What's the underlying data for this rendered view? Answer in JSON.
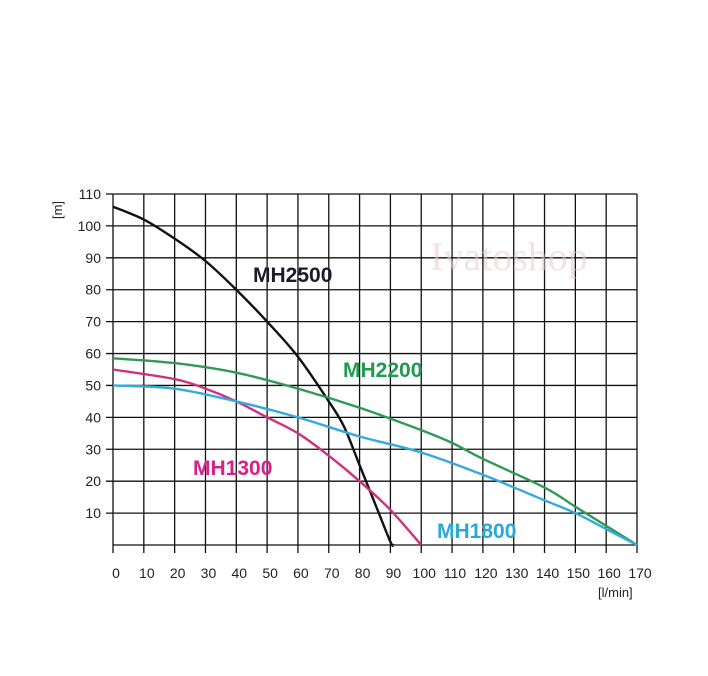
{
  "chart_data": {
    "type": "line",
    "title": "",
    "xlabel": "[l/min]",
    "ylabel": "[m]",
    "xlim": [
      0,
      170
    ],
    "ylim": [
      0,
      110
    ],
    "x_ticks": [
      0,
      10,
      20,
      30,
      40,
      50,
      60,
      70,
      80,
      90,
      100,
      110,
      120,
      130,
      140,
      150,
      160,
      170
    ],
    "y_ticks": [
      10,
      20,
      30,
      40,
      50,
      60,
      70,
      80,
      90,
      100,
      110
    ],
    "grid": true,
    "legend": "inline labels",
    "watermark": "Ivatoshop",
    "series": [
      {
        "name": "MH2500",
        "color": "#111111",
        "label_color": "#1b1b2b",
        "x": [
          0,
          10,
          20,
          30,
          40,
          50,
          60,
          70,
          75,
          80,
          85,
          90,
          91
        ],
        "y": [
          106,
          102,
          96,
          89,
          80,
          70,
          59,
          45,
          37,
          25,
          13,
          1,
          0
        ]
      },
      {
        "name": "MH2200",
        "color": "#2e9a55",
        "label_color": "#1f9a4f",
        "x": [
          0,
          20,
          40,
          60,
          80,
          100,
          110,
          120,
          140,
          150,
          160,
          170
        ],
        "y": [
          58.5,
          57,
          54,
          49,
          43,
          36,
          32,
          27,
          18,
          12,
          6,
          0
        ]
      },
      {
        "name": "MH1300",
        "color": "#d0307f",
        "label_color": "#d6218a",
        "x": [
          0,
          20,
          30,
          40,
          50,
          60,
          70,
          80,
          90,
          100
        ],
        "y": [
          55,
          52,
          49,
          45,
          40,
          35,
          28,
          20,
          11,
          0
        ]
      },
      {
        "name": "MH1800",
        "color": "#33aadd",
        "label_color": "#29a8d8",
        "x": [
          0,
          20,
          40,
          60,
          80,
          100,
          120,
          140,
          150,
          160,
          170
        ],
        "y": [
          50,
          49,
          45,
          40,
          34,
          29,
          22,
          14,
          10,
          5,
          0
        ]
      }
    ]
  }
}
